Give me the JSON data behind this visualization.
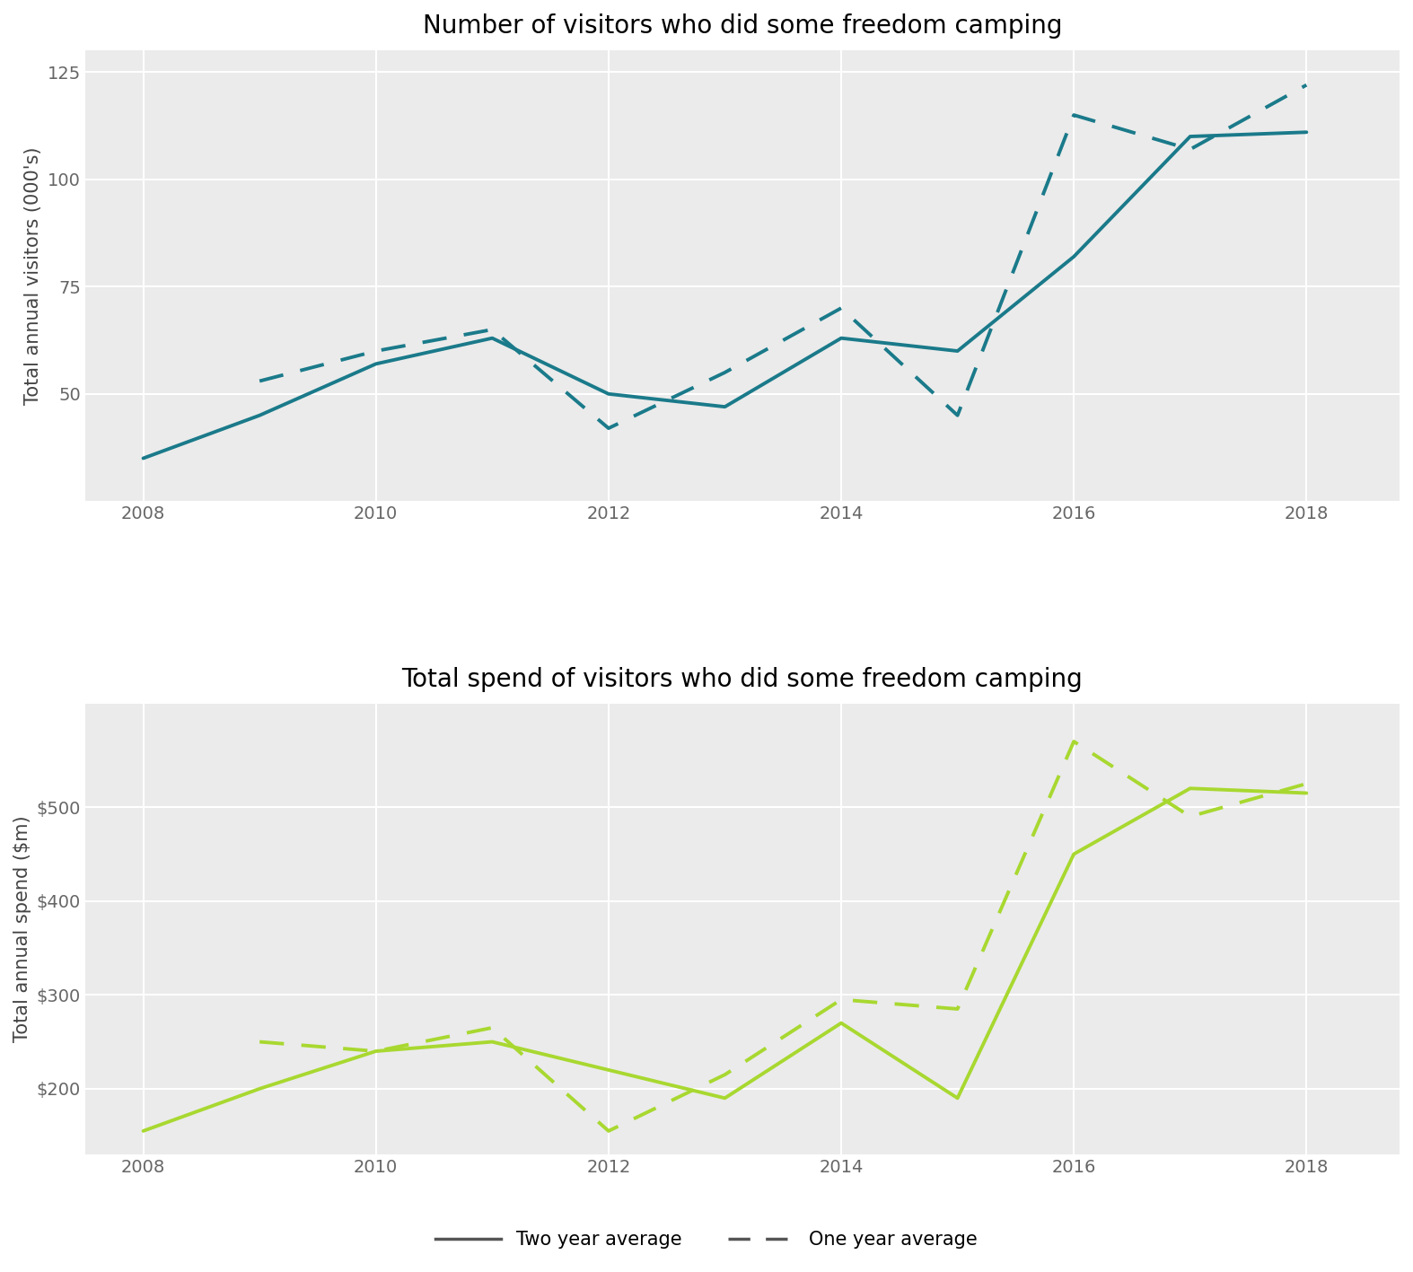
{
  "title1": "Number of visitors who did some freedom camping",
  "title2": "Total spend of visitors who did some freedom camping",
  "ylabel1": "Total annual visitors (000's)",
  "ylabel2": "Total annual spend ($m)",
  "legend_solid": "Two year average",
  "legend_dashed": "One year average",
  "years": [
    2008,
    2009,
    2010,
    2011,
    2012,
    2013,
    2014,
    2015,
    2016,
    2017,
    2018
  ],
  "visitors_solid": [
    35,
    45,
    57,
    63,
    50,
    47,
    63,
    60,
    82,
    110,
    111
  ],
  "visitors_dashed": [
    null,
    53,
    60,
    65,
    42,
    55,
    70,
    45,
    115,
    107,
    122
  ],
  "spend_solid": [
    155,
    200,
    240,
    250,
    220,
    190,
    270,
    190,
    450,
    520,
    515
  ],
  "spend_dashed": [
    null,
    250,
    240,
    265,
    155,
    215,
    295,
    285,
    570,
    490,
    525
  ],
  "visitors_ylim": [
    25,
    130
  ],
  "visitors_yticks": [
    50,
    75,
    100,
    125
  ],
  "spend_ylim": [
    130,
    610
  ],
  "spend_yticks": [
    200,
    300,
    400,
    500
  ],
  "xticks": [
    2008,
    2010,
    2012,
    2014,
    2016,
    2018
  ],
  "teal_color": "#1a7a8a",
  "green_color": "#a8d830",
  "bg_color": "#ebebeb",
  "grid_color": "#ffffff",
  "title_fontsize": 20,
  "label_fontsize": 15,
  "tick_fontsize": 14,
  "legend_fontsize": 15,
  "line_width": 2.8
}
